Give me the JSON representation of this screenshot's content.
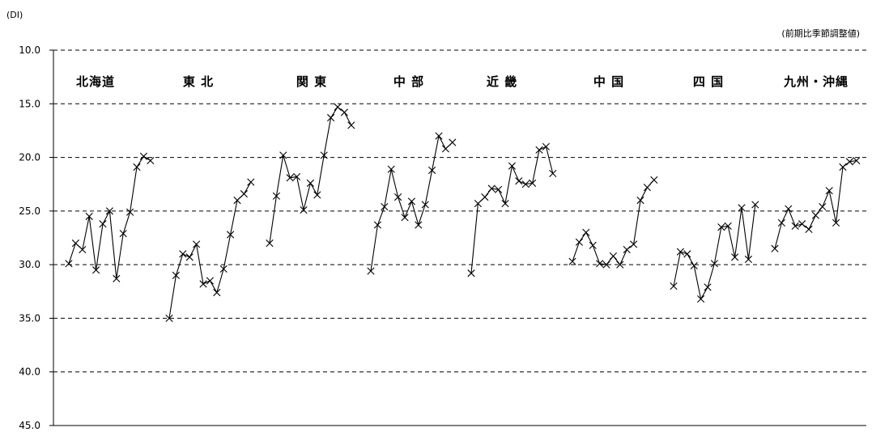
{
  "chart_data": {
    "type": "line",
    "y_unit": "(DI)",
    "note": "(前期比季節調整値)",
    "ylim": [
      10,
      45
    ],
    "y_inverted": true,
    "yticks": [
      "10.0",
      "15.0",
      "20.0",
      "25.0",
      "30.0",
      "35.0",
      "40.0",
      "45.0"
    ],
    "grid": "dashed horizontal",
    "series": [
      {
        "name": "北海道",
        "values": [
          29.9,
          28.0,
          28.6,
          25.5,
          30.5,
          26.2,
          25.0,
          31.3,
          27.1,
          25.1,
          20.9,
          19.9,
          20.3
        ]
      },
      {
        "name": "東 北",
        "values": [
          35.0,
          31.0,
          29.0,
          29.3,
          28.1,
          31.8,
          31.5,
          32.6,
          30.4,
          27.2,
          24.0,
          23.4,
          22.3
        ]
      },
      {
        "name": "関 東",
        "values": [
          28.0,
          23.6,
          19.8,
          21.9,
          21.8,
          24.9,
          22.4,
          23.5,
          19.8,
          16.3,
          15.3,
          15.8,
          17.0
        ]
      },
      {
        "name": "中 部",
        "values": [
          30.6,
          26.3,
          24.6,
          21.1,
          23.7,
          25.6,
          24.1,
          26.3,
          24.4,
          21.2,
          18.0,
          19.2,
          18.6
        ]
      },
      {
        "name": "近 畿",
        "values": [
          30.8,
          24.3,
          23.7,
          22.9,
          23.0,
          24.3,
          20.8,
          22.2,
          22.5,
          22.4,
          19.3,
          19.0,
          21.5
        ]
      },
      {
        "name": "中 国",
        "values": [
          29.7,
          27.9,
          27.0,
          28.2,
          29.9,
          30.0,
          29.2,
          30.0,
          28.6,
          28.1,
          24.0,
          22.8,
          22.1
        ]
      },
      {
        "name": "四 国",
        "values": [
          32.0,
          28.8,
          29.0,
          30.1,
          33.2,
          32.1,
          29.9,
          26.5,
          26.4,
          29.3,
          24.7,
          29.5,
          24.4
        ]
      },
      {
        "name": "九州・沖縄",
        "values": [
          28.5,
          26.1,
          24.8,
          26.4,
          26.2,
          26.7,
          25.4,
          24.6,
          23.1,
          26.1,
          20.9,
          20.4,
          20.3
        ]
      }
    ]
  }
}
